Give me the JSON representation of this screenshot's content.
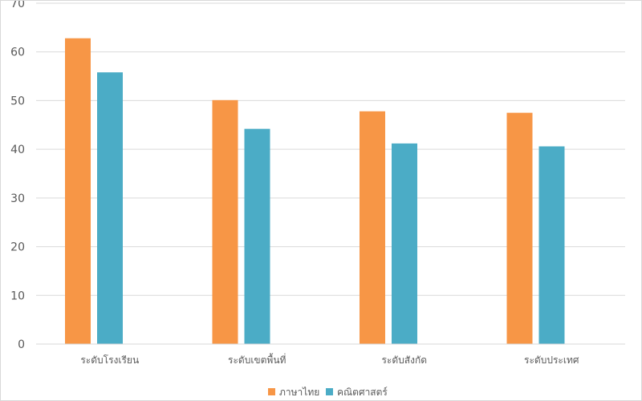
{
  "chart_data": {
    "type": "bar",
    "title": "",
    "xlabel": "",
    "ylabel": "",
    "categories": [
      "ระดับโรงเรียน",
      "ระดับเขตพื้นที่",
      "ระดับสังกัด",
      "ระดับประเทศ"
    ],
    "series": [
      {
        "name": "ภาษาไทย",
        "values": [
          62.8,
          50.1,
          47.8,
          47.5
        ],
        "color": "#f79646"
      },
      {
        "name": "คณิตศาสตร์",
        "values": [
          55.8,
          44.2,
          41.2,
          40.6
        ],
        "color": "#4bacc6"
      }
    ],
    "ylim": [
      0,
      70
    ],
    "yticks": [
      0,
      10,
      20,
      30,
      40,
      50,
      60,
      70
    ],
    "grid": true,
    "legend": "bottom-center"
  }
}
